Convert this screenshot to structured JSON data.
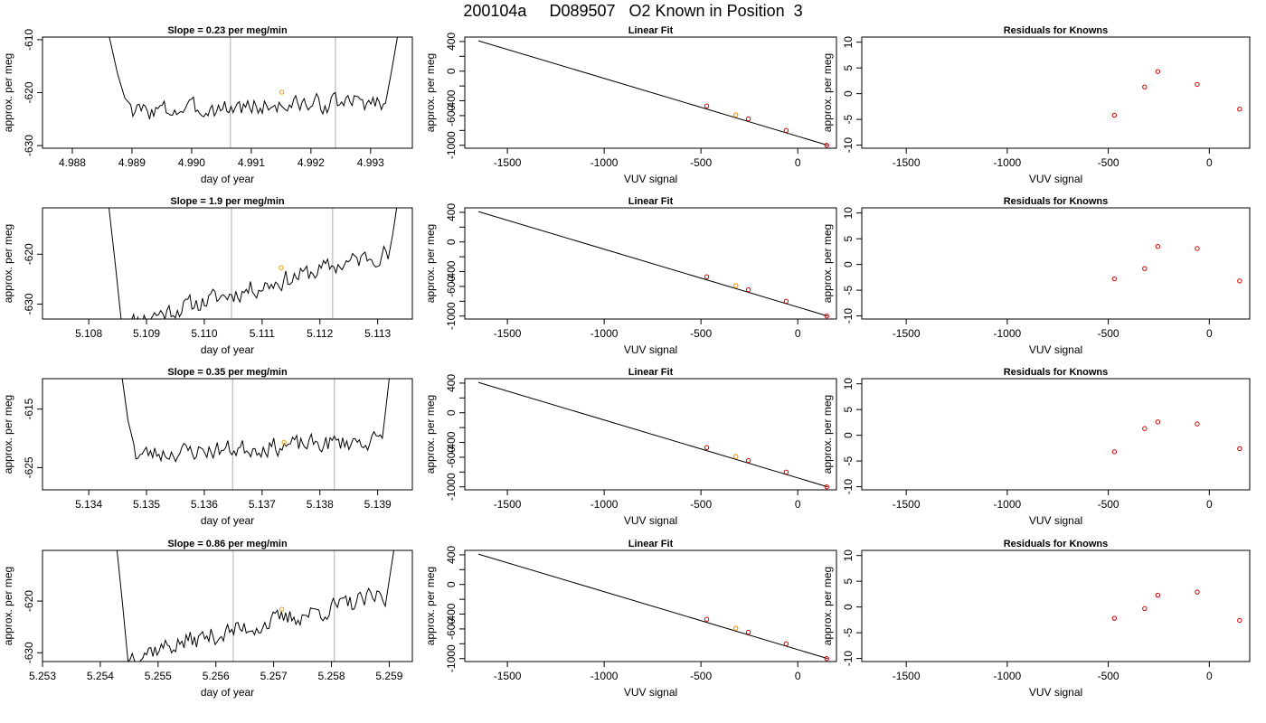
{
  "page": {
    "title": "200104a     D089507   O2 Known in Position  3"
  },
  "colors": {
    "line": "#000000",
    "marker": "#cc0000",
    "highlight": "#ff9900",
    "vline": "#bbbbbb",
    "frame": "#000000"
  },
  "chart_data": [
    {
      "type": "line",
      "title": "Slope =  0.23  per meg/min",
      "xlabel": "day of year",
      "ylabel": "approx. per meg",
      "xlim": [
        4.9875,
        4.9937
      ],
      "ylim": [
        -630.5,
        -609.5
      ],
      "xticks": [
        4.988,
        4.989,
        4.99,
        4.991,
        4.992,
        4.993
      ],
      "xtick_labels": [
        "4.988",
        "4.989",
        "4.990",
        "4.991",
        "4.992",
        "4.993"
      ],
      "yticks": [
        -630,
        -620,
        -610
      ],
      "ytick_labels": [
        "-630",
        "-620",
        "-610"
      ],
      "vlines": [
        4.99065,
        4.99241
      ],
      "trace": {
        "x_start": 4.98862,
        "x_end": 4.99345,
        "level_start": -623.6,
        "level_end": -621.6,
        "amplitude": 1.6,
        "seed": 3,
        "left_edge": [
          [
            4.98862,
            -609.5
          ],
          [
            4.98876,
            -616.5
          ],
          [
            4.98888,
            -621.0
          ],
          [
            4.98898,
            -622.3
          ]
        ],
        "right_edge": [
          [
            4.99325,
            -622.0
          ],
          [
            4.99335,
            -616.0
          ],
          [
            4.99345,
            -609.5
          ]
        ]
      },
      "highlight_point": [
        4.99151,
        -619.9
      ]
    },
    {
      "type": "scatter",
      "title": "Linear Fit",
      "xlabel": "VUV signal",
      "ylabel": "approx. per meg",
      "xlim": [
        -1720,
        200
      ],
      "ylim": [
        -1040,
        460
      ],
      "xticks": [
        -1500,
        -1000,
        -500,
        0
      ],
      "xtick_labels": [
        "-1500",
        "-1000",
        "-500",
        "0"
      ],
      "yticks": [
        -1000,
        -800,
        -600,
        -400,
        -200,
        0,
        200,
        400
      ],
      "ytick_labels": [
        "-1000",
        "",
        "-600",
        "-400",
        "",
        "0",
        "",
        "400"
      ],
      "fit_line": [
        [
          -1650,
          410
        ],
        [
          155,
          -1000
        ]
      ],
      "points": {
        "x": [
          -470,
          -255,
          -60,
          150
        ],
        "y": [
          -470,
          -645,
          -800,
          -1000
        ]
      },
      "highlight_point": [
        -320,
        -590
      ]
    },
    {
      "type": "scatter",
      "title": "Residuals for Knowns",
      "xlabel": "VUV signal",
      "ylabel": "approx. per meg",
      "xlim": [
        -1720,
        200
      ],
      "ylim": [
        -10.6,
        11.0
      ],
      "xticks": [
        -1500,
        -1000,
        -500,
        0
      ],
      "xtick_labels": [
        "-1500",
        "-1000",
        "-500",
        "0"
      ],
      "yticks": [
        -10,
        -5,
        0,
        5,
        10
      ],
      "ytick_labels": [
        "-10",
        "-5",
        "0",
        "5",
        "10"
      ],
      "points": {
        "x": [
          -470,
          -320,
          -255,
          -60,
          150
        ],
        "y": [
          -4.2,
          1.3,
          4.3,
          1.8,
          -3.0
        ]
      }
    },
    {
      "type": "line",
      "title": "Slope =  1.9  per meg/min",
      "xlabel": "day of year",
      "ylabel": "approx. per meg",
      "xlim": [
        5.1072,
        5.1136
      ],
      "ylim": [
        -633.0,
        -610.7
      ],
      "xticks": [
        5.108,
        5.109,
        5.11,
        5.111,
        5.112,
        5.113
      ],
      "xtick_labels": [
        "5.108",
        "5.109",
        "5.110",
        "5.111",
        "5.112",
        "5.113"
      ],
      "yticks": [
        -630,
        -620
      ],
      "ytick_labels": [
        "-630",
        "-620"
      ],
      "vlines": [
        5.11047,
        5.11222
      ],
      "trace": {
        "x_start": 5.10835,
        "x_end": 5.11333,
        "level_start": -634.0,
        "level_end": -619.5,
        "amplitude": 1.7,
        "seed": 11,
        "left_edge": [
          [
            5.10835,
            -610.7
          ],
          [
            5.10846,
            -622.0
          ],
          [
            5.10856,
            -633.0
          ]
        ],
        "right_edge": [
          [
            5.11318,
            -621.0
          ],
          [
            5.11326,
            -616.0
          ],
          [
            5.11333,
            -610.7
          ]
        ]
      },
      "highlight_point": [
        5.11133,
        -622.7
      ]
    },
    {
      "type": "scatter",
      "title": "Linear Fit",
      "xlabel": "VUV signal",
      "ylabel": "approx. per meg",
      "xlim": [
        -1720,
        200
      ],
      "ylim": [
        -1040,
        460
      ],
      "xticks": [
        -1500,
        -1000,
        -500,
        0
      ],
      "xtick_labels": [
        "-1500",
        "-1000",
        "-500",
        "0"
      ],
      "yticks": [
        -1000,
        -800,
        -600,
        -400,
        -200,
        0,
        200,
        400
      ],
      "ytick_labels": [
        "-1000",
        "",
        "-600",
        "-400",
        "",
        "0",
        "",
        "400"
      ],
      "fit_line": [
        [
          -1650,
          410
        ],
        [
          155,
          -1000
        ]
      ],
      "points": {
        "x": [
          -470,
          -255,
          -60,
          150
        ],
        "y": [
          -470,
          -645,
          -800,
          -1000
        ]
      },
      "highlight_point": [
        -320,
        -590
      ]
    },
    {
      "type": "scatter",
      "title": "Residuals for Knowns",
      "xlabel": "VUV signal",
      "ylabel": "approx. per meg",
      "xlim": [
        -1720,
        200
      ],
      "ylim": [
        -10.6,
        11.0
      ],
      "xticks": [
        -1500,
        -1000,
        -500,
        0
      ],
      "xtick_labels": [
        "-1500",
        "-1000",
        "-500",
        "0"
      ],
      "yticks": [
        -10,
        -5,
        0,
        5,
        10
      ],
      "ytick_labels": [
        "-10",
        "-5",
        "0",
        "5",
        "10"
      ],
      "points": {
        "x": [
          -470,
          -320,
          -255,
          -60,
          150
        ],
        "y": [
          -2.8,
          -0.8,
          3.5,
          3.1,
          -3.2
        ]
      }
    },
    {
      "type": "line",
      "title": "Slope =  0.35  per meg/min",
      "xlabel": "day of year",
      "ylabel": "approx. per meg",
      "xlim": [
        5.1332,
        5.1396
      ],
      "ylim": [
        -628.8,
        -609.8
      ],
      "xticks": [
        5.134,
        5.135,
        5.136,
        5.137,
        5.138,
        5.139
      ],
      "xtick_labels": [
        "5.134",
        "5.135",
        "5.136",
        "5.137",
        "5.138",
        "5.139"
      ],
      "yticks": [
        -625,
        -615
      ],
      "ytick_labels": [
        "-625",
        "-615"
      ],
      "vlines": [
        5.13649,
        5.13825
      ],
      "trace": {
        "x_start": 5.13458,
        "x_end": 5.1392,
        "level_start": -622.8,
        "level_end": -620.3,
        "amplitude": 1.4,
        "seed": 23,
        "left_edge": [
          [
            5.13458,
            -609.8
          ],
          [
            5.13468,
            -617.0
          ],
          [
            5.13478,
            -621.0
          ]
        ],
        "right_edge": [
          [
            5.13908,
            -620.0
          ],
          [
            5.13914,
            -615.0
          ],
          [
            5.1392,
            -609.8
          ]
        ]
      },
      "highlight_point": [
        5.13738,
        -620.7
      ]
    },
    {
      "type": "scatter",
      "title": "Linear Fit",
      "xlabel": "VUV signal",
      "ylabel": "approx. per meg",
      "xlim": [
        -1720,
        200
      ],
      "ylim": [
        -1040,
        460
      ],
      "xticks": [
        -1500,
        -1000,
        -500,
        0
      ],
      "xtick_labels": [
        "-1500",
        "-1000",
        "-500",
        "0"
      ],
      "yticks": [
        -1000,
        -800,
        -600,
        -400,
        -200,
        0,
        200,
        400
      ],
      "ytick_labels": [
        "-1000",
        "",
        "-600",
        "-400",
        "",
        "0",
        "",
        "400"
      ],
      "fit_line": [
        [
          -1650,
          410
        ],
        [
          155,
          -1000
        ]
      ],
      "points": {
        "x": [
          -470,
          -255,
          -60,
          150
        ],
        "y": [
          -470,
          -645,
          -800,
          -1000
        ]
      },
      "highlight_point": [
        -320,
        -590
      ]
    },
    {
      "type": "scatter",
      "title": "Residuals for Knowns",
      "xlabel": "VUV signal",
      "ylabel": "approx. per meg",
      "xlim": [
        -1720,
        200
      ],
      "ylim": [
        -10.6,
        11.0
      ],
      "xticks": [
        -1500,
        -1000,
        -500,
        0
      ],
      "xtick_labels": [
        "-1500",
        "-1000",
        "-500",
        "0"
      ],
      "yticks": [
        -10,
        -5,
        0,
        5,
        10
      ],
      "ytick_labels": [
        "-10",
        "-5",
        "0",
        "5",
        "10"
      ],
      "points": {
        "x": [
          -470,
          -320,
          -255,
          -60,
          150
        ],
        "y": [
          -3.2,
          1.3,
          2.6,
          2.2,
          -2.6
        ]
      }
    },
    {
      "type": "line",
      "title": "Slope =  0.86  per meg/min",
      "xlabel": "day of year",
      "ylabel": "approx. per meg",
      "xlim": [
        5.253,
        5.2594
      ],
      "ylim": [
        -631.7,
        -610.2
      ],
      "xticks": [
        5.253,
        5.254,
        5.255,
        5.256,
        5.257,
        5.258,
        5.259
      ],
      "xtick_labels": [
        "5.253",
        "5.254",
        "5.255",
        "5.256",
        "5.257",
        "5.258",
        "5.259"
      ],
      "yticks": [
        -630,
        -620
      ],
      "ytick_labels": [
        "-630",
        "-620"
      ],
      "vlines": [
        5.2563,
        5.25805
      ],
      "trace": {
        "x_start": 5.25429,
        "x_end": 5.25908,
        "level_start": -630.5,
        "level_end": -619.0,
        "amplitude": 1.7,
        "seed": 37,
        "left_edge": [
          [
            5.25429,
            -610.2
          ],
          [
            5.25438,
            -620.0
          ],
          [
            5.25448,
            -631.7
          ]
        ],
        "right_edge": [
          [
            5.25893,
            -621.0
          ],
          [
            5.259,
            -616.0
          ],
          [
            5.25908,
            -610.2
          ]
        ]
      },
      "highlight_point": [
        5.25714,
        -621.6
      ]
    },
    {
      "type": "scatter",
      "title": "Linear Fit",
      "xlabel": "VUV signal",
      "ylabel": "approx. per meg",
      "xlim": [
        -1720,
        200
      ],
      "ylim": [
        -1040,
        460
      ],
      "xticks": [
        -1500,
        -1000,
        -500,
        0
      ],
      "xtick_labels": [
        "-1500",
        "-1000",
        "-500",
        "0"
      ],
      "yticks": [
        -1000,
        -800,
        -600,
        -400,
        -200,
        0,
        200,
        400
      ],
      "ytick_labels": [
        "-1000",
        "",
        "-600",
        "-400",
        "",
        "0",
        "",
        "400"
      ],
      "fit_line": [
        [
          -1650,
          410
        ],
        [
          155,
          -1000
        ]
      ],
      "points": {
        "x": [
          -470,
          -255,
          -60,
          150
        ],
        "y": [
          -470,
          -645,
          -800,
          -1000
        ]
      },
      "highlight_point": [
        -320,
        -590
      ]
    },
    {
      "type": "scatter",
      "title": "Residuals for Knowns",
      "xlabel": "VUV signal",
      "ylabel": "approx. per meg",
      "xlim": [
        -1720,
        200
      ],
      "ylim": [
        -10.6,
        11.0
      ],
      "xticks": [
        -1500,
        -1000,
        -500,
        0
      ],
      "xtick_labels": [
        "-1500",
        "-1000",
        "-500",
        "0"
      ],
      "yticks": [
        -10,
        -5,
        0,
        5,
        10
      ],
      "ytick_labels": [
        "-10",
        "-5",
        "0",
        "5",
        "10"
      ],
      "points": {
        "x": [
          -470,
          -320,
          -255,
          -60,
          150
        ],
        "y": [
          -2.2,
          -0.3,
          2.3,
          2.9,
          -2.6
        ]
      }
    }
  ]
}
